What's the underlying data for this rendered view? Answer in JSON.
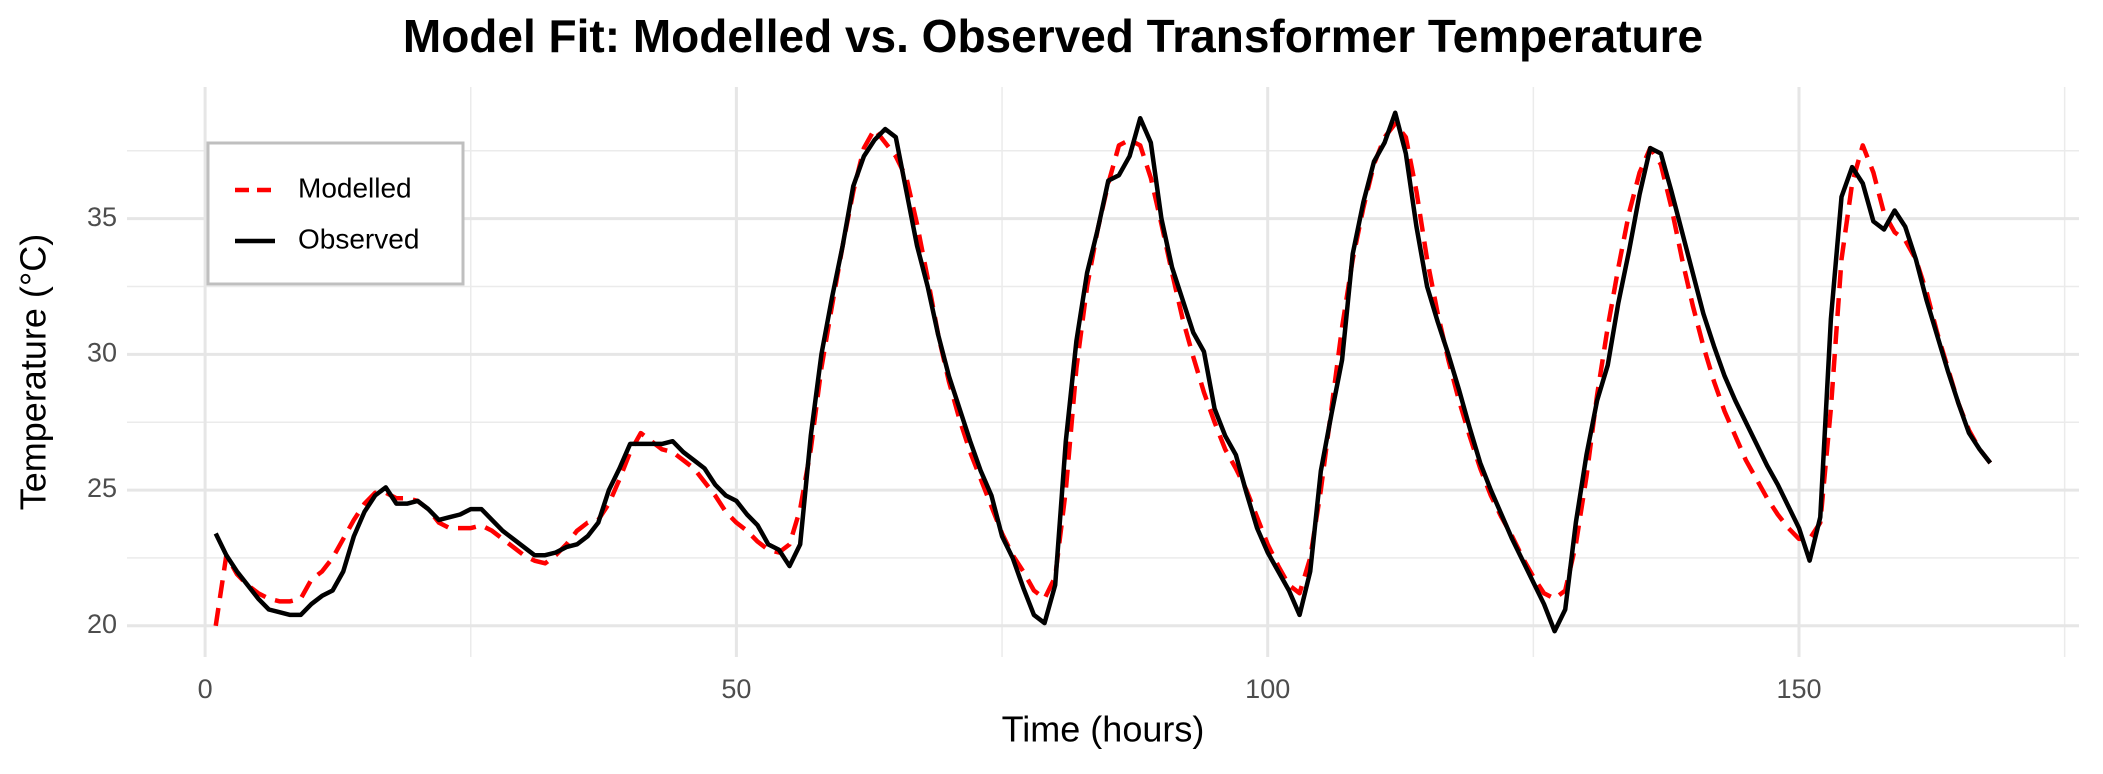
{
  "chart_data": {
    "type": "line",
    "title": "Model Fit: Modelled vs. Observed Transformer Temperature",
    "x_label": "Time (hours)",
    "y_label": "Temperature (°C)",
    "xlim": [
      -7.35,
      176.35
    ],
    "ylim": [
      18.85,
      39.85
    ],
    "xticks": [
      0,
      50,
      100,
      150
    ],
    "yticks": [
      20,
      25,
      30,
      35
    ],
    "x_minor_ticks": [
      25,
      75,
      125,
      175
    ],
    "y_minor_ticks": [
      22.5,
      27.5,
      32.5,
      37.5
    ],
    "grid": true,
    "legend_position": "top-left",
    "x": [
      1,
      2,
      3,
      4,
      5,
      6,
      7,
      8,
      9,
      10,
      11,
      12,
      13,
      14,
      15,
      16,
      17,
      18,
      19,
      20,
      21,
      22,
      23,
      24,
      25,
      26,
      27,
      28,
      29,
      30,
      31,
      32,
      33,
      34,
      35,
      36,
      37,
      38,
      39,
      40,
      41,
      42,
      43,
      44,
      45,
      46,
      47,
      48,
      49,
      50,
      51,
      52,
      53,
      54,
      55,
      56,
      57,
      58,
      59,
      60,
      61,
      62,
      63,
      64,
      65,
      66,
      67,
      68,
      69,
      70,
      71,
      72,
      73,
      74,
      75,
      76,
      77,
      78,
      79,
      80,
      81,
      82,
      83,
      84,
      85,
      86,
      87,
      88,
      89,
      90,
      91,
      92,
      93,
      94,
      95,
      96,
      97,
      98,
      99,
      100,
      101,
      102,
      103,
      104,
      105,
      106,
      107,
      108,
      109,
      110,
      111,
      112,
      113,
      114,
      115,
      116,
      117,
      118,
      119,
      120,
      121,
      122,
      123,
      124,
      125,
      126,
      127,
      128,
      129,
      130,
      131,
      132,
      133,
      134,
      135,
      136,
      137,
      138,
      139,
      140,
      141,
      142,
      143,
      144,
      145,
      146,
      147,
      148,
      149,
      150,
      151,
      152,
      153,
      154,
      155,
      156,
      157,
      158,
      159,
      160,
      161,
      162,
      163,
      164,
      165,
      166,
      167,
      168
    ],
    "series": [
      {
        "name": "Modelled",
        "color": "#ff0000",
        "dashed": true,
        "values": [
          20.0,
          22.6,
          21.9,
          21.5,
          21.2,
          21.0,
          20.9,
          20.9,
          21.0,
          21.7,
          22.0,
          22.5,
          23.2,
          23.9,
          24.5,
          24.9,
          24.9,
          24.7,
          24.7,
          24.6,
          24.3,
          23.8,
          23.6,
          23.6,
          23.6,
          23.7,
          23.5,
          23.2,
          22.9,
          22.6,
          22.4,
          22.3,
          22.6,
          23.0,
          23.5,
          23.8,
          23.9,
          24.5,
          25.4,
          26.4,
          27.1,
          26.8,
          26.5,
          26.4,
          26.1,
          25.8,
          25.3,
          24.8,
          24.2,
          23.8,
          23.5,
          23.1,
          22.8,
          22.7,
          23.0,
          24.3,
          26.5,
          29.5,
          31.8,
          34.0,
          36.0,
          37.6,
          38.3,
          37.8,
          37.3,
          36.5,
          34.8,
          32.8,
          30.7,
          29.0,
          27.6,
          26.4,
          25.4,
          24.4,
          23.4,
          22.6,
          22.0,
          21.3,
          21.0,
          21.8,
          25.0,
          29.5,
          32.5,
          34.6,
          36.3,
          37.7,
          37.9,
          37.7,
          36.5,
          34.8,
          33.0,
          31.3,
          29.9,
          28.6,
          27.5,
          26.5,
          25.8,
          25.0,
          24.0,
          23.0,
          22.2,
          21.5,
          21.2,
          22.5,
          25.0,
          28.0,
          31.0,
          33.5,
          35.4,
          37.0,
          38.0,
          38.5,
          38.0,
          36.0,
          33.5,
          31.5,
          29.8,
          28.3,
          27.0,
          25.8,
          24.8,
          24.0,
          23.3,
          22.5,
          21.8,
          21.2,
          21.0,
          21.3,
          23.0,
          25.5,
          28.5,
          31.0,
          33.2,
          35.2,
          36.7,
          37.6,
          37.0,
          35.4,
          33.5,
          31.8,
          30.3,
          29.0,
          27.9,
          27.0,
          26.1,
          25.4,
          24.7,
          24.1,
          23.6,
          23.2,
          23.2,
          23.8,
          28.0,
          33.5,
          36.3,
          37.7,
          36.7,
          35.2,
          34.5,
          34.2,
          33.5,
          32.3,
          30.8,
          29.5,
          28.2,
          27.2,
          26.5,
          26.0
        ]
      },
      {
        "name": "Observed",
        "color": "#000000",
        "dashed": false,
        "values": [
          23.4,
          22.6,
          22.0,
          21.5,
          21.0,
          20.6,
          20.5,
          20.4,
          20.4,
          20.8,
          21.1,
          21.3,
          22.0,
          23.3,
          24.2,
          24.8,
          25.1,
          24.5,
          24.5,
          24.6,
          24.3,
          23.9,
          24.0,
          24.1,
          24.3,
          24.3,
          23.9,
          23.5,
          23.2,
          22.9,
          22.6,
          22.6,
          22.7,
          22.9,
          23.0,
          23.3,
          23.8,
          25.0,
          25.8,
          26.7,
          26.7,
          26.7,
          26.7,
          26.8,
          26.4,
          26.1,
          25.8,
          25.2,
          24.8,
          24.6,
          24.1,
          23.7,
          23.0,
          22.8,
          22.2,
          23.0,
          27.0,
          30.0,
          32.1,
          34.0,
          36.2,
          37.3,
          37.9,
          38.3,
          38.0,
          36.0,
          34.0,
          32.5,
          30.7,
          29.2,
          28.0,
          26.8,
          25.7,
          24.8,
          23.3,
          22.5,
          21.4,
          20.4,
          20.1,
          21.5,
          26.8,
          30.5,
          33.0,
          34.6,
          36.4,
          36.6,
          37.3,
          38.7,
          37.8,
          35.0,
          33.2,
          32.0,
          30.8,
          30.1,
          28.0,
          27.0,
          26.3,
          24.9,
          23.6,
          22.7,
          22.0,
          21.3,
          20.4,
          22.0,
          25.7,
          27.8,
          29.8,
          33.7,
          35.6,
          37.1,
          37.8,
          38.9,
          37.4,
          34.7,
          32.5,
          31.2,
          30.0,
          28.7,
          27.3,
          26.0,
          25.0,
          24.1,
          23.2,
          22.4,
          21.6,
          20.8,
          19.8,
          20.6,
          23.8,
          26.3,
          28.3,
          29.6,
          31.9,
          33.8,
          35.9,
          37.6,
          37.4,
          36.0,
          34.5,
          33.0,
          31.5,
          30.3,
          29.2,
          28.3,
          27.5,
          26.7,
          25.9,
          25.2,
          24.4,
          23.6,
          22.4,
          24.0,
          31.3,
          35.8,
          36.9,
          36.3,
          34.9,
          34.6,
          35.3,
          34.7,
          33.5,
          32.0,
          30.7,
          29.4,
          28.2,
          27.1,
          26.5,
          26.0
        ]
      }
    ]
  }
}
